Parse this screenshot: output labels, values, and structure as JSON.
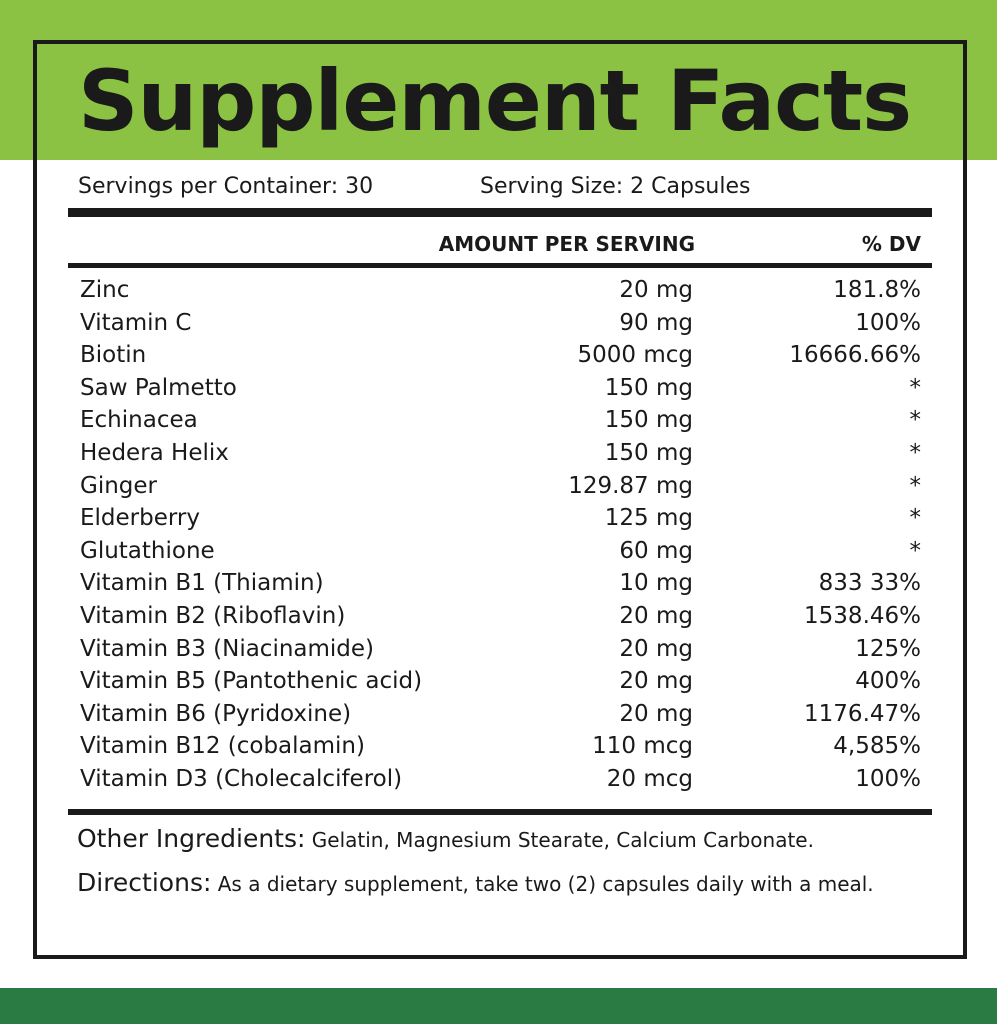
{
  "header": {
    "title": "Supplement Facts"
  },
  "servings": {
    "container": "Servings per Container: 30",
    "size": "Serving Size: 2 Capsules"
  },
  "table": {
    "columns": [
      "AMOUNT PER SERVING",
      "% DV"
    ],
    "rows": [
      [
        "Zinc",
        "20 mg",
        "181.8%"
      ],
      [
        "Vitamin C",
        "90 mg",
        "100%"
      ],
      [
        "Biotin",
        "5000 mcg",
        "16666.66%"
      ],
      [
        "Saw Palmetto",
        "150 mg",
        "*"
      ],
      [
        "Echinacea",
        "150 mg",
        "*"
      ],
      [
        "Hedera Helix",
        "150 mg",
        "*"
      ],
      [
        "Ginger",
        "129.87 mg",
        "*"
      ],
      [
        "Elderberry",
        "125 mg",
        "*"
      ],
      [
        "Glutathione",
        "60 mg",
        "*"
      ],
      [
        "Vitamin B1 (Thiamin)",
        "10 mg",
        "833 33%"
      ],
      [
        "Vitamin B2 (Riboflavin)",
        "20 mg",
        "1538.46%"
      ],
      [
        "Vitamin B3 (Niacinamide)",
        "20 mg",
        "125%"
      ],
      [
        "Vitamin B5 (Pantothenic acid)",
        "20 mg",
        "400%"
      ],
      [
        "Vitamin B6 (Pyridoxine)",
        "20 mg",
        "1176.47%"
      ],
      [
        "Vitamin B12 (cobalamin)",
        "110 mcg",
        "4,585%"
      ],
      [
        "Vitamin D3 (Cholecalciferol)",
        "20 mcg",
        "100%"
      ]
    ]
  },
  "other_ingredients": {
    "label": "Other Ingredients:",
    "text": "Gelatin, Magnesium Stearate, Calcium Carbonate."
  },
  "directions": {
    "label": "Directions:",
    "text": "As a dietary supplement, take two (2) capsules daily with a meal."
  }
}
